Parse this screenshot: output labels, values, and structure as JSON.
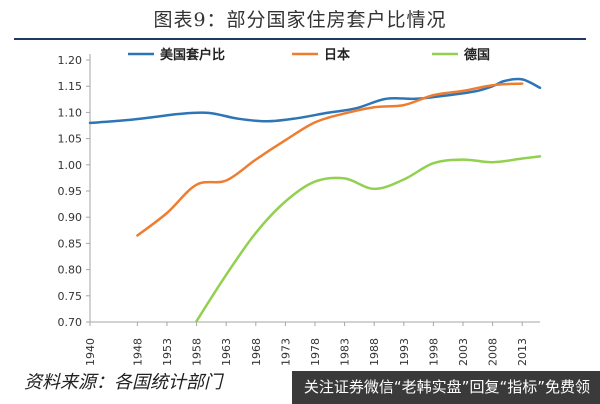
{
  "title": "图表9：部分国家住房套户比情况",
  "source": "资料来源：各国统计部门",
  "banner": "关注证券微信“老韩实盘”回复“指标”免费领",
  "colors": {
    "us": "#2e75b6",
    "japan": "#ed7d31",
    "germany": "#92d050",
    "axis": "#a6a6a6",
    "rule": "#1f3864"
  },
  "chart_data": {
    "type": "line",
    "title": "",
    "xlabel": "",
    "ylabel": "",
    "ylim": [
      0.7,
      1.2
    ],
    "xlim": [
      1940,
      2016
    ],
    "yticks": [
      "0.70",
      "0.75",
      "0.80",
      "0.85",
      "0.90",
      "0.95",
      "1.00",
      "1.05",
      "1.10",
      "1.15",
      "1.20"
    ],
    "xticks": [
      "1940",
      "1948",
      "1953",
      "1958",
      "1963",
      "1968",
      "1973",
      "1978",
      "1983",
      "1988",
      "1993",
      "1998",
      "2003",
      "2008",
      "2013"
    ],
    "grid": false,
    "legend": "top",
    "series": [
      {
        "name": "美国套户比",
        "key": "us",
        "x": [
          1940,
          1945,
          1950,
          1955,
          1960,
          1965,
          1970,
          1975,
          1980,
          1985,
          1990,
          1995,
          2000,
          2005,
          2008,
          2010,
          2013,
          2016
        ],
        "y": [
          1.08,
          1.084,
          1.09,
          1.097,
          1.099,
          1.088,
          1.083,
          1.089,
          1.099,
          1.108,
          1.126,
          1.126,
          1.132,
          1.14,
          1.15,
          1.16,
          1.163,
          1.147
        ]
      },
      {
        "name": "日本",
        "key": "japan",
        "x": [
          1948,
          1953,
          1958,
          1963,
          1968,
          1973,
          1978,
          1983,
          1988,
          1993,
          1998,
          2003,
          2008,
          2013
        ],
        "y": [
          0.865,
          0.908,
          0.962,
          0.97,
          1.01,
          1.047,
          1.081,
          1.098,
          1.11,
          1.114,
          1.133,
          1.141,
          1.152,
          1.155
        ]
      },
      {
        "name": "德国",
        "key": "germany",
        "x": [
          1958,
          1963,
          1968,
          1973,
          1978,
          1983,
          1988,
          1993,
          1998,
          2003,
          2008,
          2013,
          2016
        ],
        "y": [
          0.702,
          0.79,
          0.87,
          0.93,
          0.968,
          0.974,
          0.954,
          0.972,
          1.003,
          1.01,
          1.005,
          1.012,
          1.016
        ]
      }
    ]
  }
}
